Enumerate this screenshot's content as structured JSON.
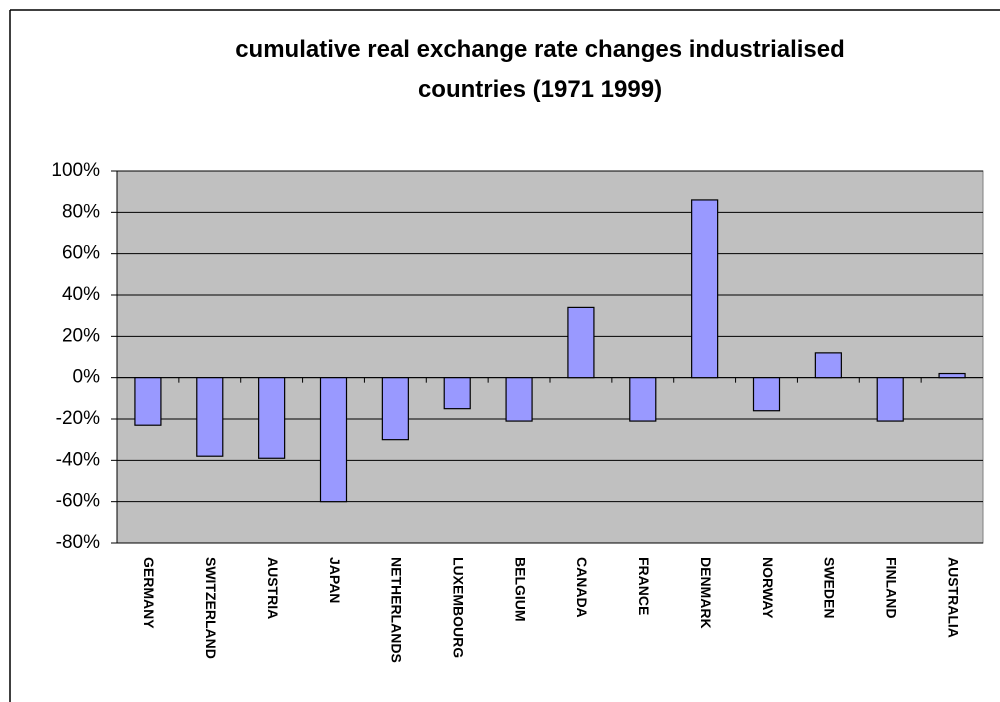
{
  "chart_data": {
    "type": "bar",
    "title": "cumulative real exchange rate changes industrialised countries (1971 1999)",
    "categories": [
      "GERMANY",
      "SWITZERLAND",
      "AUSTRIA",
      "JAPAN",
      "NETHERLANDS",
      "LUXEMBOURG",
      "BELGIUM",
      "CANADA",
      "FRANCE",
      "DENMARK",
      "NORWAY",
      "SWEDEN",
      "FINLAND",
      "AUSTRALIA"
    ],
    "values": [
      -23,
      -38,
      -39,
      -60,
      -30,
      -15,
      -21,
      34,
      -21,
      86,
      -16,
      12,
      -21,
      2
    ],
    "color": "#9999ff",
    "ylim": [
      -80,
      100
    ],
    "yticks": [
      {
        "value": -80,
        "label": "-80%"
      },
      {
        "value": -60,
        "label": "-60%"
      },
      {
        "value": -40,
        "label": "-40%"
      },
      {
        "value": -20,
        "label": "-20%"
      },
      {
        "value": 0,
        "label": "0%"
      },
      {
        "value": 20,
        "label": "20%"
      },
      {
        "value": 40,
        "label": "40%"
      },
      {
        "value": 60,
        "label": "60%"
      },
      {
        "value": 80,
        "label": "80%"
      },
      {
        "value": 100,
        "label": "100%"
      }
    ],
    "grid": true
  }
}
